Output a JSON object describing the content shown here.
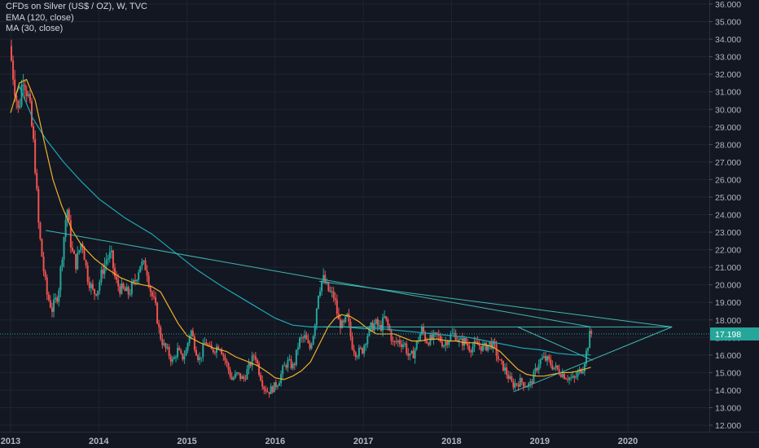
{
  "legend": {
    "symbol": "CFDs on Silver (US$ / OZ), W, TVC",
    "ema": "EMA (120, close)",
    "ma": "MA (30, close)"
  },
  "colors": {
    "background": "#131722",
    "up": "#26a69a",
    "down": "#ef5350",
    "ema": "#1ba9b6",
    "ma": "#f0b02a",
    "trendline": "#3fb8b0",
    "price_tag": "#26a69a",
    "axis_text": "#b2b5be",
    "grid": "#1f2433"
  },
  "chart_data": {
    "type": "candlestick",
    "title": "CFDs on Silver (US$ / OZ), W, TVC",
    "y_ticks": [
      "12.000",
      "13.000",
      "14.000",
      "15.000",
      "16.000",
      "17.000",
      "18.000",
      "19.000",
      "20.000",
      "21.000",
      "22.000",
      "23.000",
      "24.000",
      "25.000",
      "26.000",
      "27.000",
      "28.000",
      "29.000",
      "30.000",
      "31.000",
      "32.000",
      "33.000",
      "34.000",
      "35.000",
      "36.000"
    ],
    "x_ticks": [
      "2013",
      "2014",
      "2015",
      "2016",
      "2017",
      "2018",
      "2019",
      "2020"
    ],
    "ylim": [
      11.8,
      36.2
    ],
    "xlim": [
      2013.0,
      2020.98
    ],
    "last_price": "17.198",
    "price_path": [
      [
        2013.0,
        33.6
      ],
      [
        2013.05,
        31.5
      ],
      [
        2013.1,
        29.8
      ],
      [
        2013.15,
        32.0
      ],
      [
        2013.22,
        30.5
      ],
      [
        2013.28,
        27.5
      ],
      [
        2013.33,
        23.2
      ],
      [
        2013.38,
        21.0
      ],
      [
        2013.42,
        19.5
      ],
      [
        2013.48,
        18.6
      ],
      [
        2013.55,
        19.5
      ],
      [
        2013.6,
        22.0
      ],
      [
        2013.65,
        24.5
      ],
      [
        2013.7,
        22.0
      ],
      [
        2013.75,
        21.2
      ],
      [
        2013.82,
        22.6
      ],
      [
        2013.88,
        20.5
      ],
      [
        2013.95,
        19.5
      ],
      [
        2014.0,
        19.8
      ],
      [
        2014.05,
        20.8
      ],
      [
        2014.1,
        21.5
      ],
      [
        2014.15,
        21.7
      ],
      [
        2014.2,
        20.2
      ],
      [
        2014.25,
        19.8
      ],
      [
        2014.35,
        19.5
      ],
      [
        2014.42,
        20.2
      ],
      [
        2014.48,
        21.2
      ],
      [
        2014.55,
        21.0
      ],
      [
        2014.6,
        19.6
      ],
      [
        2014.65,
        18.8
      ],
      [
        2014.7,
        17.2
      ],
      [
        2014.75,
        16.5
      ],
      [
        2014.8,
        16.1
      ],
      [
        2014.85,
        15.6
      ],
      [
        2014.9,
        16.3
      ],
      [
        2014.95,
        15.8
      ],
      [
        2015.0,
        16.2
      ],
      [
        2015.05,
        17.5
      ],
      [
        2015.1,
        16.5
      ],
      [
        2015.15,
        15.7
      ],
      [
        2015.22,
        16.8
      ],
      [
        2015.28,
        16.2
      ],
      [
        2015.33,
        16.4
      ],
      [
        2015.38,
        16.6
      ],
      [
        2015.45,
        15.6
      ],
      [
        2015.52,
        14.6
      ],
      [
        2015.58,
        14.9
      ],
      [
        2015.65,
        14.6
      ],
      [
        2015.72,
        15.4
      ],
      [
        2015.78,
        16.1
      ],
      [
        2015.82,
        15.2
      ],
      [
        2015.88,
        14.2
      ],
      [
        2015.93,
        13.9
      ],
      [
        2016.0,
        14.2
      ],
      [
        2016.05,
        14.5
      ],
      [
        2016.1,
        15.2
      ],
      [
        2016.15,
        15.6
      ],
      [
        2016.22,
        15.3
      ],
      [
        2016.28,
        16.8
      ],
      [
        2016.35,
        17.0
      ],
      [
        2016.4,
        16.3
      ],
      [
        2016.45,
        17.4
      ],
      [
        2016.5,
        19.6
      ],
      [
        2016.55,
        20.4
      ],
      [
        2016.62,
        19.6
      ],
      [
        2016.68,
        19.3
      ],
      [
        2016.73,
        17.9
      ],
      [
        2016.78,
        17.6
      ],
      [
        2016.83,
        18.2
      ],
      [
        2016.88,
        16.6
      ],
      [
        2016.93,
        16.1
      ],
      [
        2017.0,
        16.3
      ],
      [
        2017.05,
        17.1
      ],
      [
        2017.1,
        17.6
      ],
      [
        2017.15,
        17.8
      ],
      [
        2017.2,
        17.5
      ],
      [
        2017.25,
        18.1
      ],
      [
        2017.3,
        17.5
      ],
      [
        2017.35,
        16.6
      ],
      [
        2017.4,
        16.8
      ],
      [
        2017.48,
        16.6
      ],
      [
        2017.53,
        15.8
      ],
      [
        2017.58,
        16.1
      ],
      [
        2017.63,
        16.9
      ],
      [
        2017.68,
        17.5
      ],
      [
        2017.72,
        16.8
      ],
      [
        2017.78,
        16.9
      ],
      [
        2017.85,
        17.1
      ],
      [
        2017.92,
        16.6
      ],
      [
        2018.0,
        17.1
      ],
      [
        2018.05,
        17.2
      ],
      [
        2018.1,
        16.7
      ],
      [
        2018.15,
        16.8
      ],
      [
        2018.22,
        16.4
      ],
      [
        2018.3,
        16.6
      ],
      [
        2018.38,
        16.4
      ],
      [
        2018.45,
        16.7
      ],
      [
        2018.5,
        16.4
      ],
      [
        2018.55,
        15.6
      ],
      [
        2018.6,
        15.3
      ],
      [
        2018.65,
        14.8
      ],
      [
        2018.7,
        14.3
      ],
      [
        2018.75,
        14.4
      ],
      [
        2018.8,
        14.5
      ],
      [
        2018.85,
        14.3
      ],
      [
        2018.9,
        14.3
      ],
      [
        2018.95,
        14.9
      ],
      [
        2019.0,
        15.6
      ],
      [
        2019.05,
        15.8
      ],
      [
        2019.1,
        15.7
      ],
      [
        2019.15,
        15.4
      ],
      [
        2019.2,
        15.2
      ],
      [
        2019.25,
        15.0
      ],
      [
        2019.3,
        14.8
      ],
      [
        2019.35,
        14.7
      ],
      [
        2019.4,
        14.6
      ],
      [
        2019.45,
        15.0
      ],
      [
        2019.5,
        15.3
      ],
      [
        2019.55,
        16.4
      ],
      [
        2019.58,
        17.2
      ]
    ],
    "ema_path": [
      [
        2013.05,
        30.7
      ],
      [
        2013.1,
        31.3
      ],
      [
        2013.15,
        30.7
      ],
      [
        2013.25,
        29.5
      ],
      [
        2013.4,
        28.3
      ],
      [
        2013.6,
        27.0
      ],
      [
        2013.8,
        25.9
      ],
      [
        2014.0,
        24.9
      ],
      [
        2014.3,
        23.8
      ],
      [
        2014.6,
        22.9
      ],
      [
        2014.85,
        21.9
      ],
      [
        2015.1,
        20.9
      ],
      [
        2015.4,
        19.9
      ],
      [
        2015.6,
        19.3
      ],
      [
        2015.8,
        18.7
      ],
      [
        2016.0,
        18.1
      ],
      [
        2016.2,
        17.7
      ],
      [
        2016.4,
        17.6
      ],
      [
        2016.6,
        17.6
      ],
      [
        2016.8,
        17.6
      ],
      [
        2017.0,
        17.5
      ],
      [
        2017.2,
        17.5
      ],
      [
        2017.4,
        17.4
      ],
      [
        2017.6,
        17.3
      ],
      [
        2017.8,
        17.2
      ],
      [
        2018.0,
        17.1
      ],
      [
        2018.2,
        17.0
      ],
      [
        2018.4,
        16.8
      ],
      [
        2018.6,
        16.6
      ],
      [
        2018.8,
        16.4
      ],
      [
        2019.0,
        16.3
      ],
      [
        2019.2,
        16.1
      ],
      [
        2019.4,
        16.0
      ],
      [
        2019.58,
        16.0
      ]
    ],
    "ma_path": [
      [
        2013.0,
        29.8
      ],
      [
        2013.1,
        31.5
      ],
      [
        2013.18,
        31.7
      ],
      [
        2013.28,
        30.5
      ],
      [
        2013.38,
        28.2
      ],
      [
        2013.48,
        26.0
      ],
      [
        2013.58,
        24.5
      ],
      [
        2013.7,
        23.1
      ],
      [
        2013.8,
        22.3
      ],
      [
        2013.95,
        21.5
      ],
      [
        2014.1,
        20.9
      ],
      [
        2014.25,
        20.4
      ],
      [
        2014.4,
        20.1
      ],
      [
        2014.5,
        20.0
      ],
      [
        2014.6,
        19.9
      ],
      [
        2014.7,
        19.6
      ],
      [
        2014.8,
        18.7
      ],
      [
        2014.9,
        17.8
      ],
      [
        2015.0,
        17.1
      ],
      [
        2015.15,
        16.7
      ],
      [
        2015.3,
        16.4
      ],
      [
        2015.45,
        16.2
      ],
      [
        2015.55,
        15.9
      ],
      [
        2015.7,
        15.6
      ],
      [
        2015.8,
        15.4
      ],
      [
        2015.92,
        15.0
      ],
      [
        2016.0,
        14.7
      ],
      [
        2016.1,
        14.6
      ],
      [
        2016.2,
        14.8
      ],
      [
        2016.3,
        15.1
      ],
      [
        2016.4,
        15.6
      ],
      [
        2016.5,
        16.6
      ],
      [
        2016.6,
        17.6
      ],
      [
        2016.68,
        18.1
      ],
      [
        2016.75,
        18.3
      ],
      [
        2016.85,
        18.2
      ],
      [
        2016.95,
        17.9
      ],
      [
        2017.05,
        17.5
      ],
      [
        2017.15,
        17.2
      ],
      [
        2017.25,
        17.2
      ],
      [
        2017.35,
        17.2
      ],
      [
        2017.45,
        17.0
      ],
      [
        2017.55,
        16.8
      ],
      [
        2017.65,
        16.8
      ],
      [
        2017.75,
        16.9
      ],
      [
        2017.85,
        16.9
      ],
      [
        2017.95,
        16.8
      ],
      [
        2018.05,
        16.8
      ],
      [
        2018.15,
        16.7
      ],
      [
        2018.25,
        16.7
      ],
      [
        2018.35,
        16.6
      ],
      [
        2018.45,
        16.5
      ],
      [
        2018.55,
        16.2
      ],
      [
        2018.65,
        15.7
      ],
      [
        2018.75,
        15.2
      ],
      [
        2018.85,
        14.9
      ],
      [
        2018.95,
        14.8
      ],
      [
        2019.05,
        14.8
      ],
      [
        2019.15,
        14.9
      ],
      [
        2019.25,
        15.0
      ],
      [
        2019.35,
        15.0
      ],
      [
        2019.45,
        15.1
      ],
      [
        2019.58,
        15.3
      ]
    ],
    "trendlines": [
      {
        "from": [
          2013.4,
          23.1
        ],
        "to": [
          2019.58,
          17.6
        ]
      },
      {
        "from": [
          2016.5,
          20.2
        ],
        "to": [
          2020.5,
          17.6
        ]
      },
      {
        "from": [
          2016.55,
          17.6
        ],
        "to": [
          2020.5,
          17.6
        ]
      },
      {
        "from": [
          2018.7,
          13.9
        ],
        "to": [
          2020.5,
          17.6
        ]
      },
      {
        "from": [
          2018.75,
          17.6
        ],
        "to": [
          2019.6,
          15.7
        ]
      }
    ]
  }
}
